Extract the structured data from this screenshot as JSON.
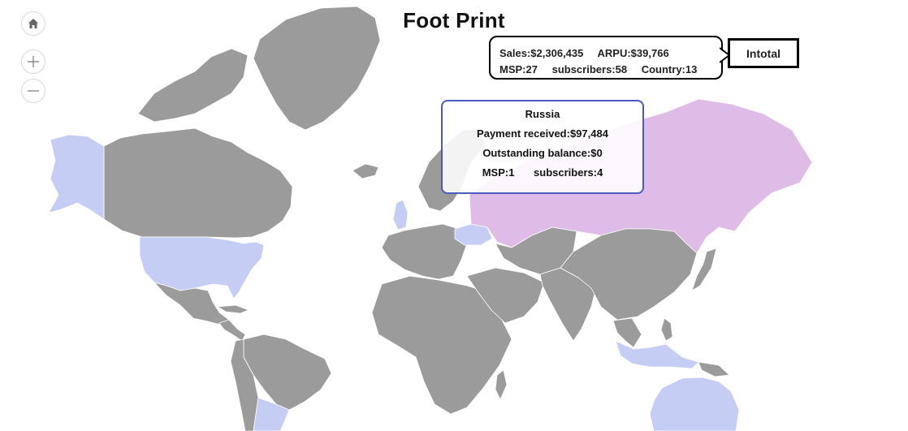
{
  "title": "Foot Print",
  "controls": {
    "home_icon": "home-icon",
    "zoom_in_icon": "plus-icon",
    "zoom_out_icon": "minus-icon"
  },
  "totals": {
    "sales": "Sales:$2,306,435",
    "arpu": "ARPU:$39,766",
    "msp": "MSP:27",
    "subscribers": "subscribers:58",
    "country": "Country:13",
    "tab_label": "Intotal"
  },
  "tooltip": {
    "country": "Russia",
    "payment": "Payment received:$97,484",
    "outstanding": "Outstanding balance:$0",
    "msp": "MSP:1",
    "subscribers": "subscribers:4"
  },
  "colors": {
    "land_default": "#9b9b9b",
    "highlight_blue": "#c5cdf5",
    "highlight_purple": "#dfbbe8",
    "border": "#ffffff",
    "card_border": "#4a5bbf"
  },
  "map": {
    "highlighted_countries": [
      "United States",
      "Alaska (United States)",
      "United Kingdom",
      "Ukraine",
      "Russia",
      "Indonesia",
      "Australia",
      "Argentina"
    ],
    "selected_country": "Russia"
  }
}
